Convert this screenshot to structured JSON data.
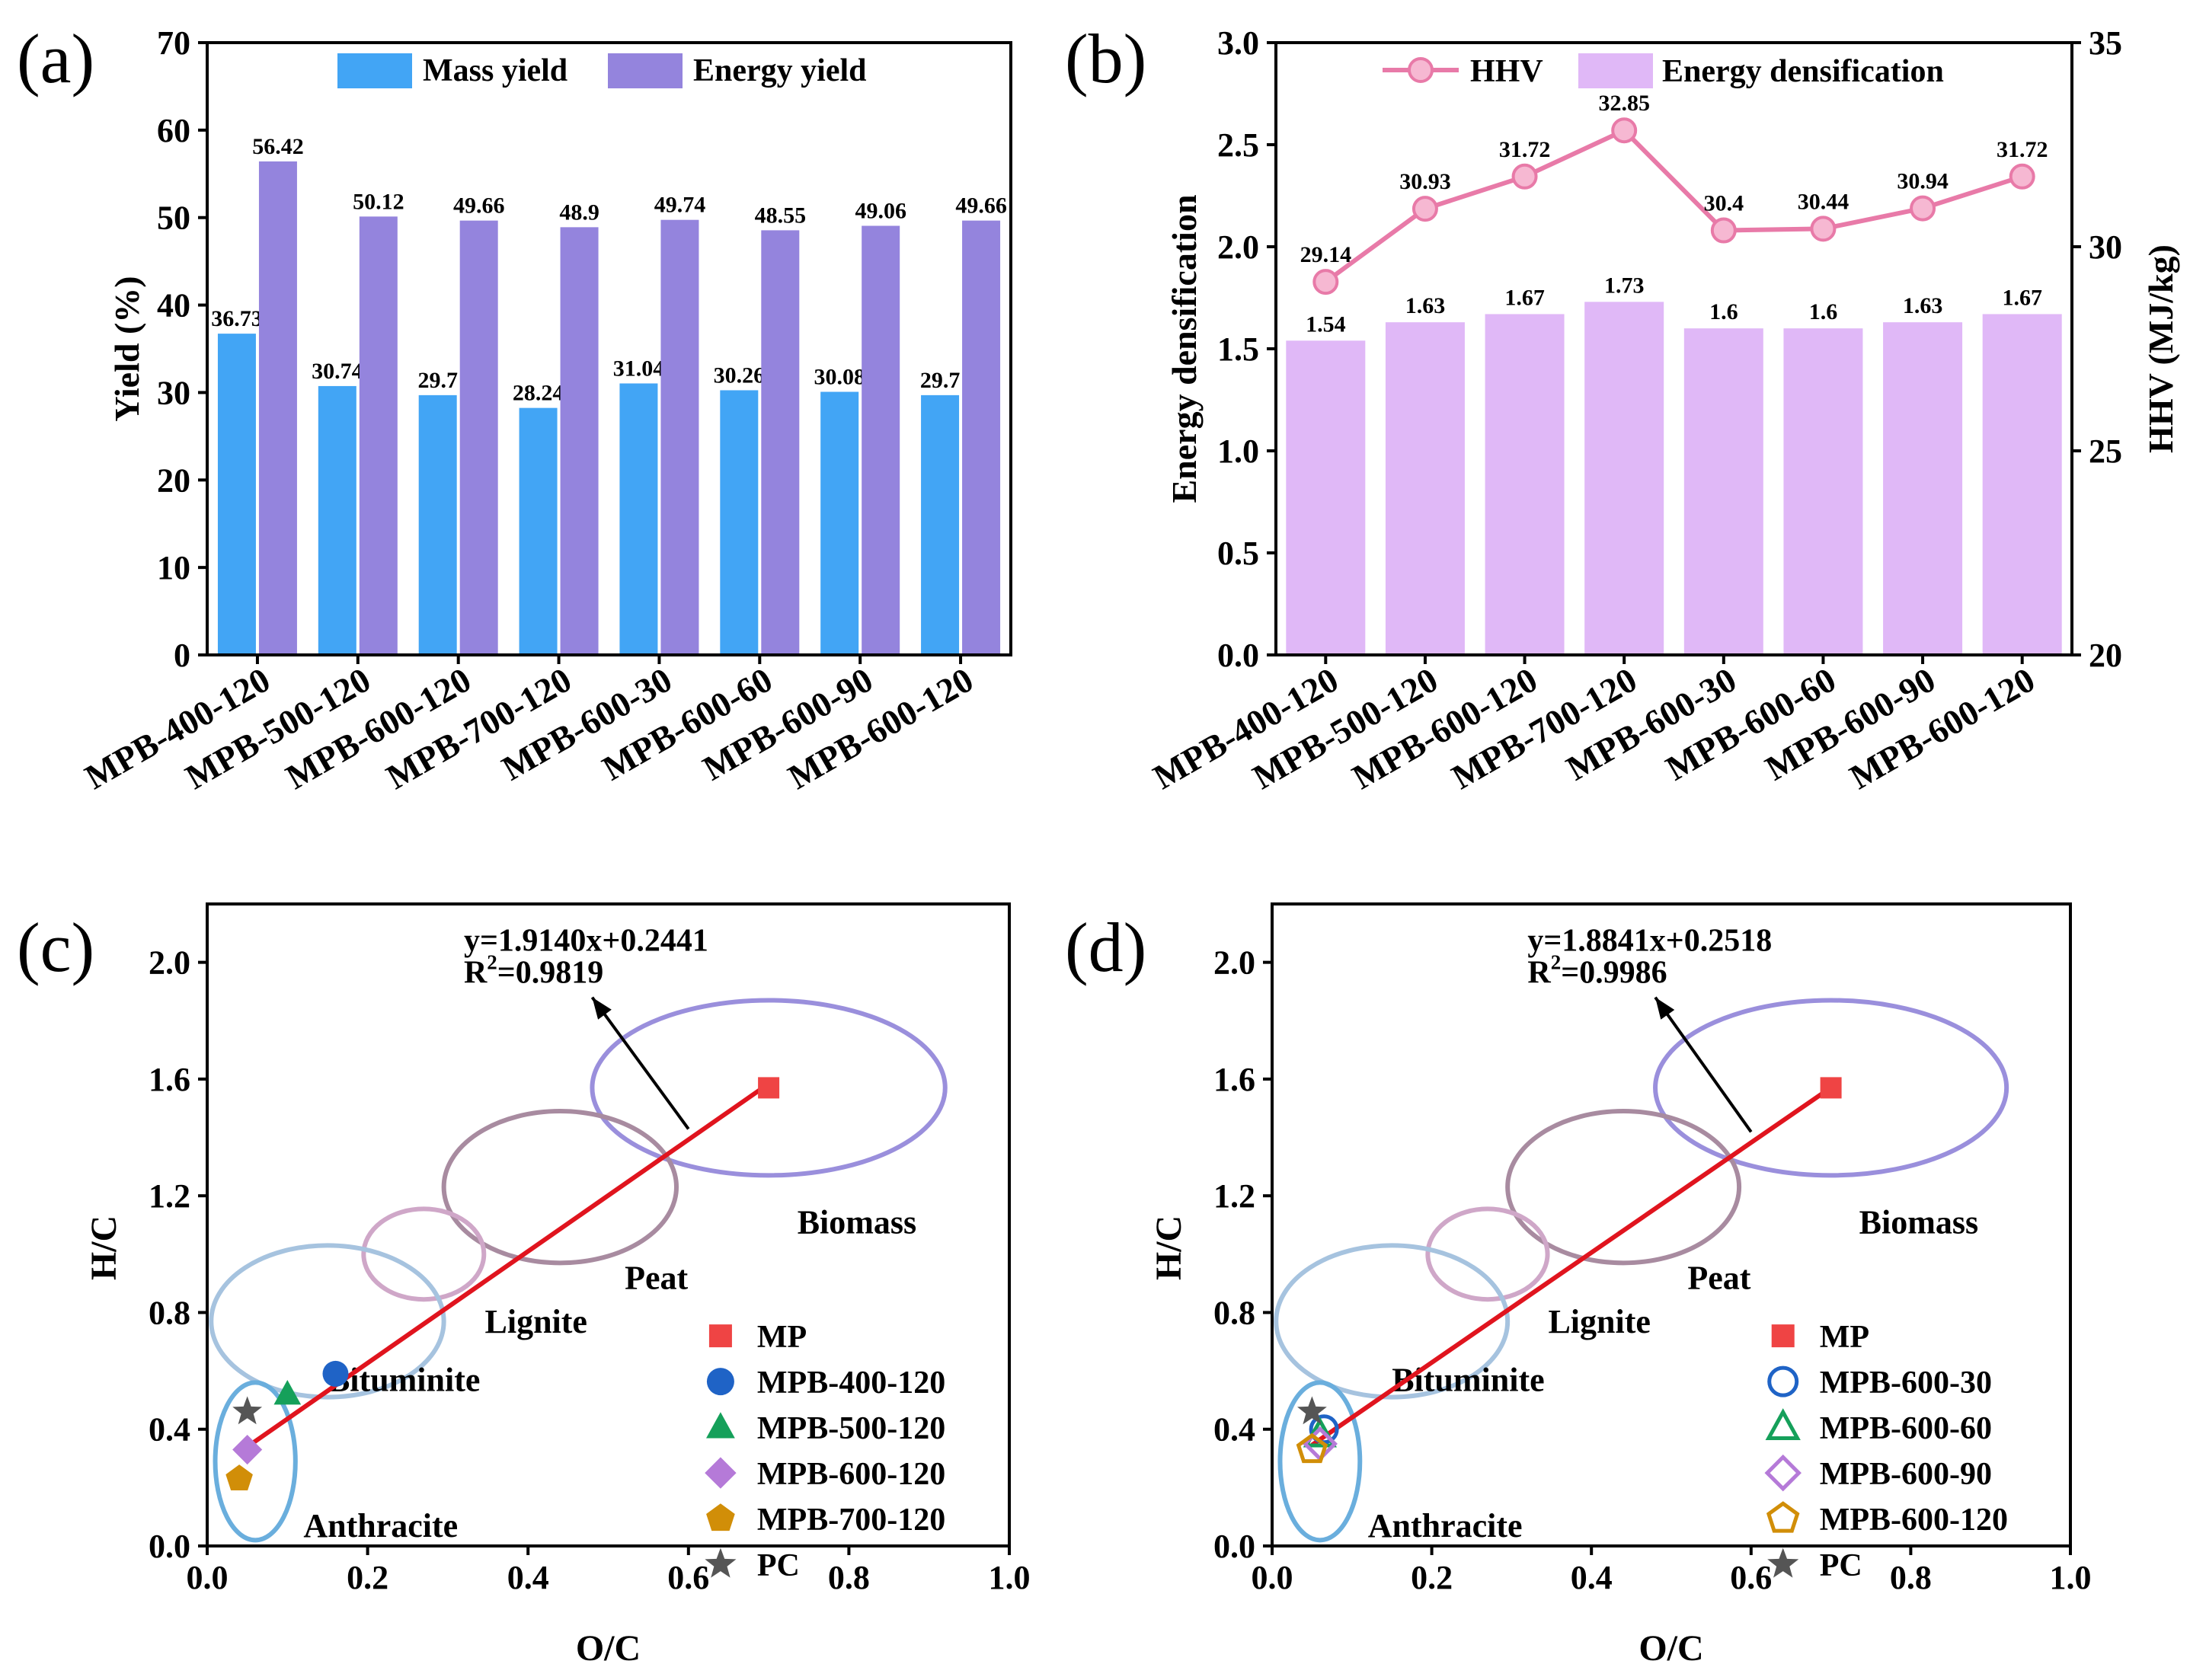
{
  "chart_data": [
    {
      "id": "a",
      "panel_label": "(a)",
      "type": "bar",
      "categories": [
        "MPB-400-120",
        "MPB-500-120",
        "MPB-600-120",
        "MPB-700-120",
        "MPB-600-30",
        "MPB-600-60",
        "MPB-600-90",
        "MPB-600-120"
      ],
      "series": [
        {
          "name": "Mass yield",
          "values": [
            36.73,
            30.74,
            29.7,
            28.24,
            31.04,
            30.26,
            30.08,
            29.7
          ],
          "labels": [
            "36.73",
            "30.74",
            "29.7",
            "28.24",
            "31.04",
            "30.26",
            "30.08",
            "29.7"
          ],
          "color": "#42a5f5",
          "label_color": "#42a5f5"
        },
        {
          "name": "Energy yield",
          "values": [
            56.42,
            50.12,
            49.66,
            48.9,
            49.74,
            48.55,
            49.06,
            49.66
          ],
          "labels": [
            "56.42",
            "50.12",
            "49.66",
            "48.9",
            "49.74",
            "48.55",
            "49.06",
            "49.66"
          ],
          "color": "#9484dd",
          "label_color": "#8a7fd6"
        }
      ],
      "ylabel": "Yield (%)",
      "ylim": [
        0,
        70
      ],
      "yticks": [
        "0",
        "10",
        "20",
        "30",
        "40",
        "50",
        "60",
        "70"
      ],
      "legend_position": "top"
    },
    {
      "id": "b",
      "panel_label": "(b)",
      "type": "bar",
      "categories": [
        "MPB-400-120",
        "MPB-500-120",
        "MPB-600-120",
        "MPB-700-120",
        "MPB-600-30",
        "MPB-600-60",
        "MPB-600-90",
        "MPB-600-120"
      ],
      "bars": {
        "name": "Energy densification",
        "values": [
          1.54,
          1.63,
          1.67,
          1.73,
          1.6,
          1.6,
          1.63,
          1.67
        ],
        "labels": [
          "1.54",
          "1.63",
          "1.67",
          "1.73",
          "1.6",
          "1.6",
          "1.63",
          "1.67"
        ],
        "color": "#e0b8f7",
        "label_color": "#7f7fce"
      },
      "line": {
        "name": "HHV",
        "values": [
          29.14,
          30.93,
          31.72,
          32.85,
          30.4,
          30.44,
          30.94,
          31.72
        ],
        "labels": [
          "29.14",
          "30.93",
          "31.72",
          "32.85",
          "30.4",
          "30.44",
          "30.94",
          "31.72"
        ],
        "color": "#e87aa8",
        "label_color": "#e87aa8"
      },
      "ylabel_left": "Energy densification",
      "ylabel_right": "HHV (MJ/kg)",
      "ylim_left": [
        0,
        3.0
      ],
      "ylim_right": [
        20,
        35
      ],
      "yticks_left": [
        "0.0",
        "0.5",
        "1.0",
        "1.5",
        "2.0",
        "2.5",
        "3.0"
      ],
      "yticks_right": [
        "20",
        "25",
        "30",
        "35"
      ],
      "legend_position": "top"
    },
    {
      "id": "c",
      "panel_label": "(c)",
      "type": "scatter",
      "xlabel": "O/C",
      "ylabel": "H/C",
      "xlim": [
        0,
        1.0
      ],
      "ylim": [
        0,
        2.2
      ],
      "xticks": [
        "0.0",
        "0.2",
        "0.4",
        "0.6",
        "0.8",
        "1.0"
      ],
      "yticks": [
        "0.0",
        "0.4",
        "0.8",
        "1.2",
        "1.6",
        "2.0"
      ],
      "equation": "y=1.9140x+0.2441",
      "r2_prefix": "R",
      "r2_suffix": "=0.9819",
      "fit": {
        "slope": 1.914,
        "intercept": 0.2441,
        "x_range": [
          0.05,
          0.7
        ]
      },
      "regions": [
        {
          "name": "Biomass",
          "cx": 0.7,
          "cy": 1.57,
          "rx": 0.22,
          "ry": 0.3,
          "color": "#9a8fdc"
        },
        {
          "name": "Peat",
          "cx": 0.44,
          "cy": 1.23,
          "rx": 0.145,
          "ry": 0.26,
          "color": "#a88ba0"
        },
        {
          "name": "Lignite",
          "cx": 0.27,
          "cy": 1.0,
          "rx": 0.075,
          "ry": 0.155,
          "color": "#cfa7c8"
        },
        {
          "name": "Bituminite",
          "cx": 0.15,
          "cy": 0.77,
          "rx": 0.145,
          "ry": 0.26,
          "color": "#a6c3df"
        },
        {
          "name": "Anthracite",
          "cx": 0.06,
          "cy": 0.29,
          "rx": 0.05,
          "ry": 0.27,
          "color": "#6aaedd"
        }
      ],
      "points": [
        {
          "name": "MP",
          "x": 0.7,
          "y": 1.57,
          "marker": "square",
          "color": "#ef4444",
          "filled": true
        },
        {
          "name": "MPB-400-120",
          "x": 0.16,
          "y": 0.59,
          "marker": "circle",
          "color": "#1f63c6",
          "filled": true
        },
        {
          "name": "MPB-500-120",
          "x": 0.1,
          "y": 0.52,
          "marker": "triangle",
          "color": "#15a05a",
          "filled": true
        },
        {
          "name": "MPB-600-120",
          "x": 0.05,
          "y": 0.33,
          "marker": "diamond",
          "color": "#b57ad8",
          "filled": true
        },
        {
          "name": "MPB-700-120",
          "x": 0.04,
          "y": 0.23,
          "marker": "pentagon",
          "color": "#d18e08",
          "filled": true
        },
        {
          "name": "PC",
          "x": 0.05,
          "y": 0.46,
          "marker": "star",
          "color": "#555555",
          "filled": true
        }
      ]
    },
    {
      "id": "d",
      "panel_label": "(d)",
      "type": "scatter",
      "xlabel": "O/C",
      "ylabel": "H/C",
      "xlim": [
        0,
        1.0
      ],
      "ylim": [
        0,
        2.2
      ],
      "xticks": [
        "0.0",
        "0.2",
        "0.4",
        "0.6",
        "0.8",
        "1.0"
      ],
      "yticks": [
        "0.0",
        "0.4",
        "0.8",
        "1.2",
        "1.6",
        "2.0"
      ],
      "equation": "y=1.8841x+0.2518",
      "r2_prefix": "R",
      "r2_suffix": "=0.9986",
      "fit": {
        "slope": 1.8841,
        "intercept": 0.2518,
        "x_range": [
          0.05,
          0.7
        ]
      },
      "regions": [
        {
          "name": "Biomass",
          "cx": 0.7,
          "cy": 1.57,
          "rx": 0.22,
          "ry": 0.3,
          "color": "#9a8fdc"
        },
        {
          "name": "Peat",
          "cx": 0.44,
          "cy": 1.23,
          "rx": 0.145,
          "ry": 0.26,
          "color": "#a88ba0"
        },
        {
          "name": "Lignite",
          "cx": 0.27,
          "cy": 1.0,
          "rx": 0.075,
          "ry": 0.155,
          "color": "#cfa7c8"
        },
        {
          "name": "Bituminite",
          "cx": 0.15,
          "cy": 0.77,
          "rx": 0.145,
          "ry": 0.26,
          "color": "#a6c3df"
        },
        {
          "name": "Anthracite",
          "cx": 0.06,
          "cy": 0.29,
          "rx": 0.05,
          "ry": 0.27,
          "color": "#6aaedd"
        }
      ],
      "points": [
        {
          "name": "MP",
          "x": 0.7,
          "y": 1.57,
          "marker": "square",
          "color": "#ef4444",
          "filled": true
        },
        {
          "name": "MPB-600-30",
          "x": 0.065,
          "y": 0.4,
          "marker": "circle",
          "color": "#1f63c6",
          "filled": false
        },
        {
          "name": "MPB-600-60",
          "x": 0.06,
          "y": 0.38,
          "marker": "triangle",
          "color": "#15a05a",
          "filled": false
        },
        {
          "name": "MPB-600-90",
          "x": 0.06,
          "y": 0.35,
          "marker": "diamond",
          "color": "#b57ad8",
          "filled": false
        },
        {
          "name": "MPB-600-120",
          "x": 0.05,
          "y": 0.33,
          "marker": "pentagon",
          "color": "#d18e08",
          "filled": false
        },
        {
          "name": "PC",
          "x": 0.05,
          "y": 0.46,
          "marker": "star",
          "color": "#555555",
          "filled": true
        }
      ]
    }
  ]
}
